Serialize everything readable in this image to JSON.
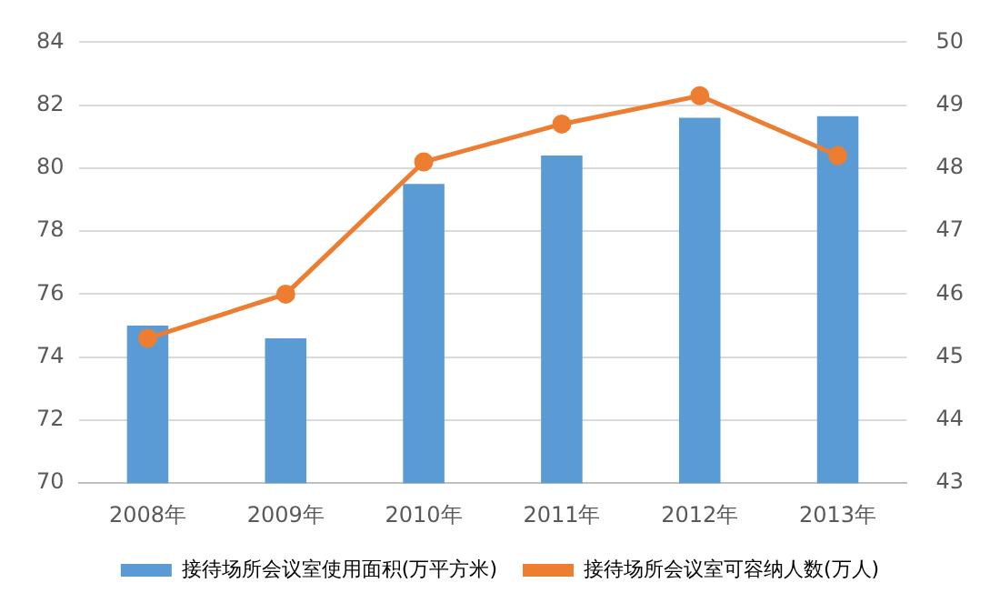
{
  "chart_data": {
    "type": "bar",
    "categories": [
      "2008年",
      "2009年",
      "2010年",
      "2011年",
      "2012年",
      "2013年"
    ],
    "series": [
      {
        "name": "接待场所会议室使用面积(万平方米)",
        "color": "#5b9bd5",
        "values": [
          75.0,
          74.6,
          79.5,
          80.4,
          81.6,
          81.65
        ]
      },
      {
        "name": "接待场所会议室可容纳人数(万人)",
        "type": "line",
        "axis": "y2",
        "color": "#ed7d31",
        "values": [
          45.3,
          46.0,
          48.1,
          48.7,
          49.15,
          48.2
        ]
      }
    ],
    "ylim": [
      70,
      84
    ],
    "yticks": [
      70,
      72,
      74,
      76,
      78,
      80,
      82,
      84
    ],
    "y2lim": [
      43,
      50
    ],
    "y2ticks": [
      43,
      44,
      45,
      46,
      47,
      48,
      49,
      50
    ],
    "grid": "y",
    "legend": "bottom",
    "marker": "circle"
  }
}
